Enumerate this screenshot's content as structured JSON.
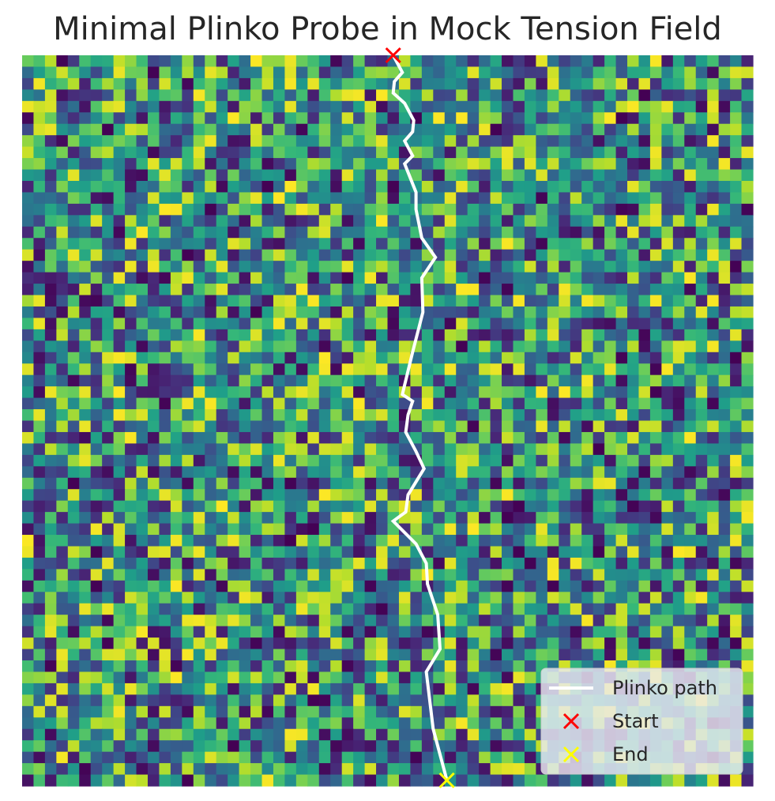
{
  "chart_data": {
    "type": "heatmap",
    "title": "Minimal Plinko Probe in Mock Tension Field",
    "xlabel": "",
    "ylabel": "",
    "axes_visible": false,
    "grid": false,
    "colormap": "viridis",
    "grid_size": [
      64,
      64
    ],
    "field_description": "random noise field, cell values in [0, 1]",
    "series": [
      {
        "name": "Plinko path",
        "type": "line",
        "color": "#ffffff",
        "x": [
          32.5,
          33.3,
          32.6,
          32.5,
          33.5,
          34.3,
          34.2,
          33.5,
          34.2,
          33.5,
          34.5,
          34.5,
          35.0,
          36.2,
          35.0,
          35.1,
          34.2,
          33.3,
          34.2,
          33.8,
          33.6,
          34.5,
          35.2,
          33.8,
          33.6,
          32.5,
          34.5,
          35.4,
          35.5,
          36.4,
          36.6,
          35.4,
          36.0,
          37.2
        ],
        "y": [
          0.0,
          1.5,
          2.3,
          3.3,
          4.2,
          5.7,
          6.7,
          7.5,
          8.8,
          9.5,
          12.0,
          13.5,
          16.0,
          17.7,
          19.5,
          22.5,
          26.0,
          29.7,
          30.3,
          31.5,
          33.0,
          34.7,
          36.2,
          38.5,
          40.0,
          40.8,
          42.8,
          44.5,
          46.3,
          49.0,
          52.0,
          54.0,
          59.0,
          63.5
        ]
      }
    ],
    "markers": [
      {
        "name": "Start",
        "symbol": "x",
        "color": "#ff0000",
        "x": 32.5,
        "y": 0.0
      },
      {
        "name": "End",
        "symbol": "x",
        "color": "#ffff00",
        "x": 37.2,
        "y": 63.5
      }
    ],
    "legend": {
      "position": "lower-right",
      "entries": [
        "Plinko path",
        "Start",
        "End"
      ]
    }
  }
}
